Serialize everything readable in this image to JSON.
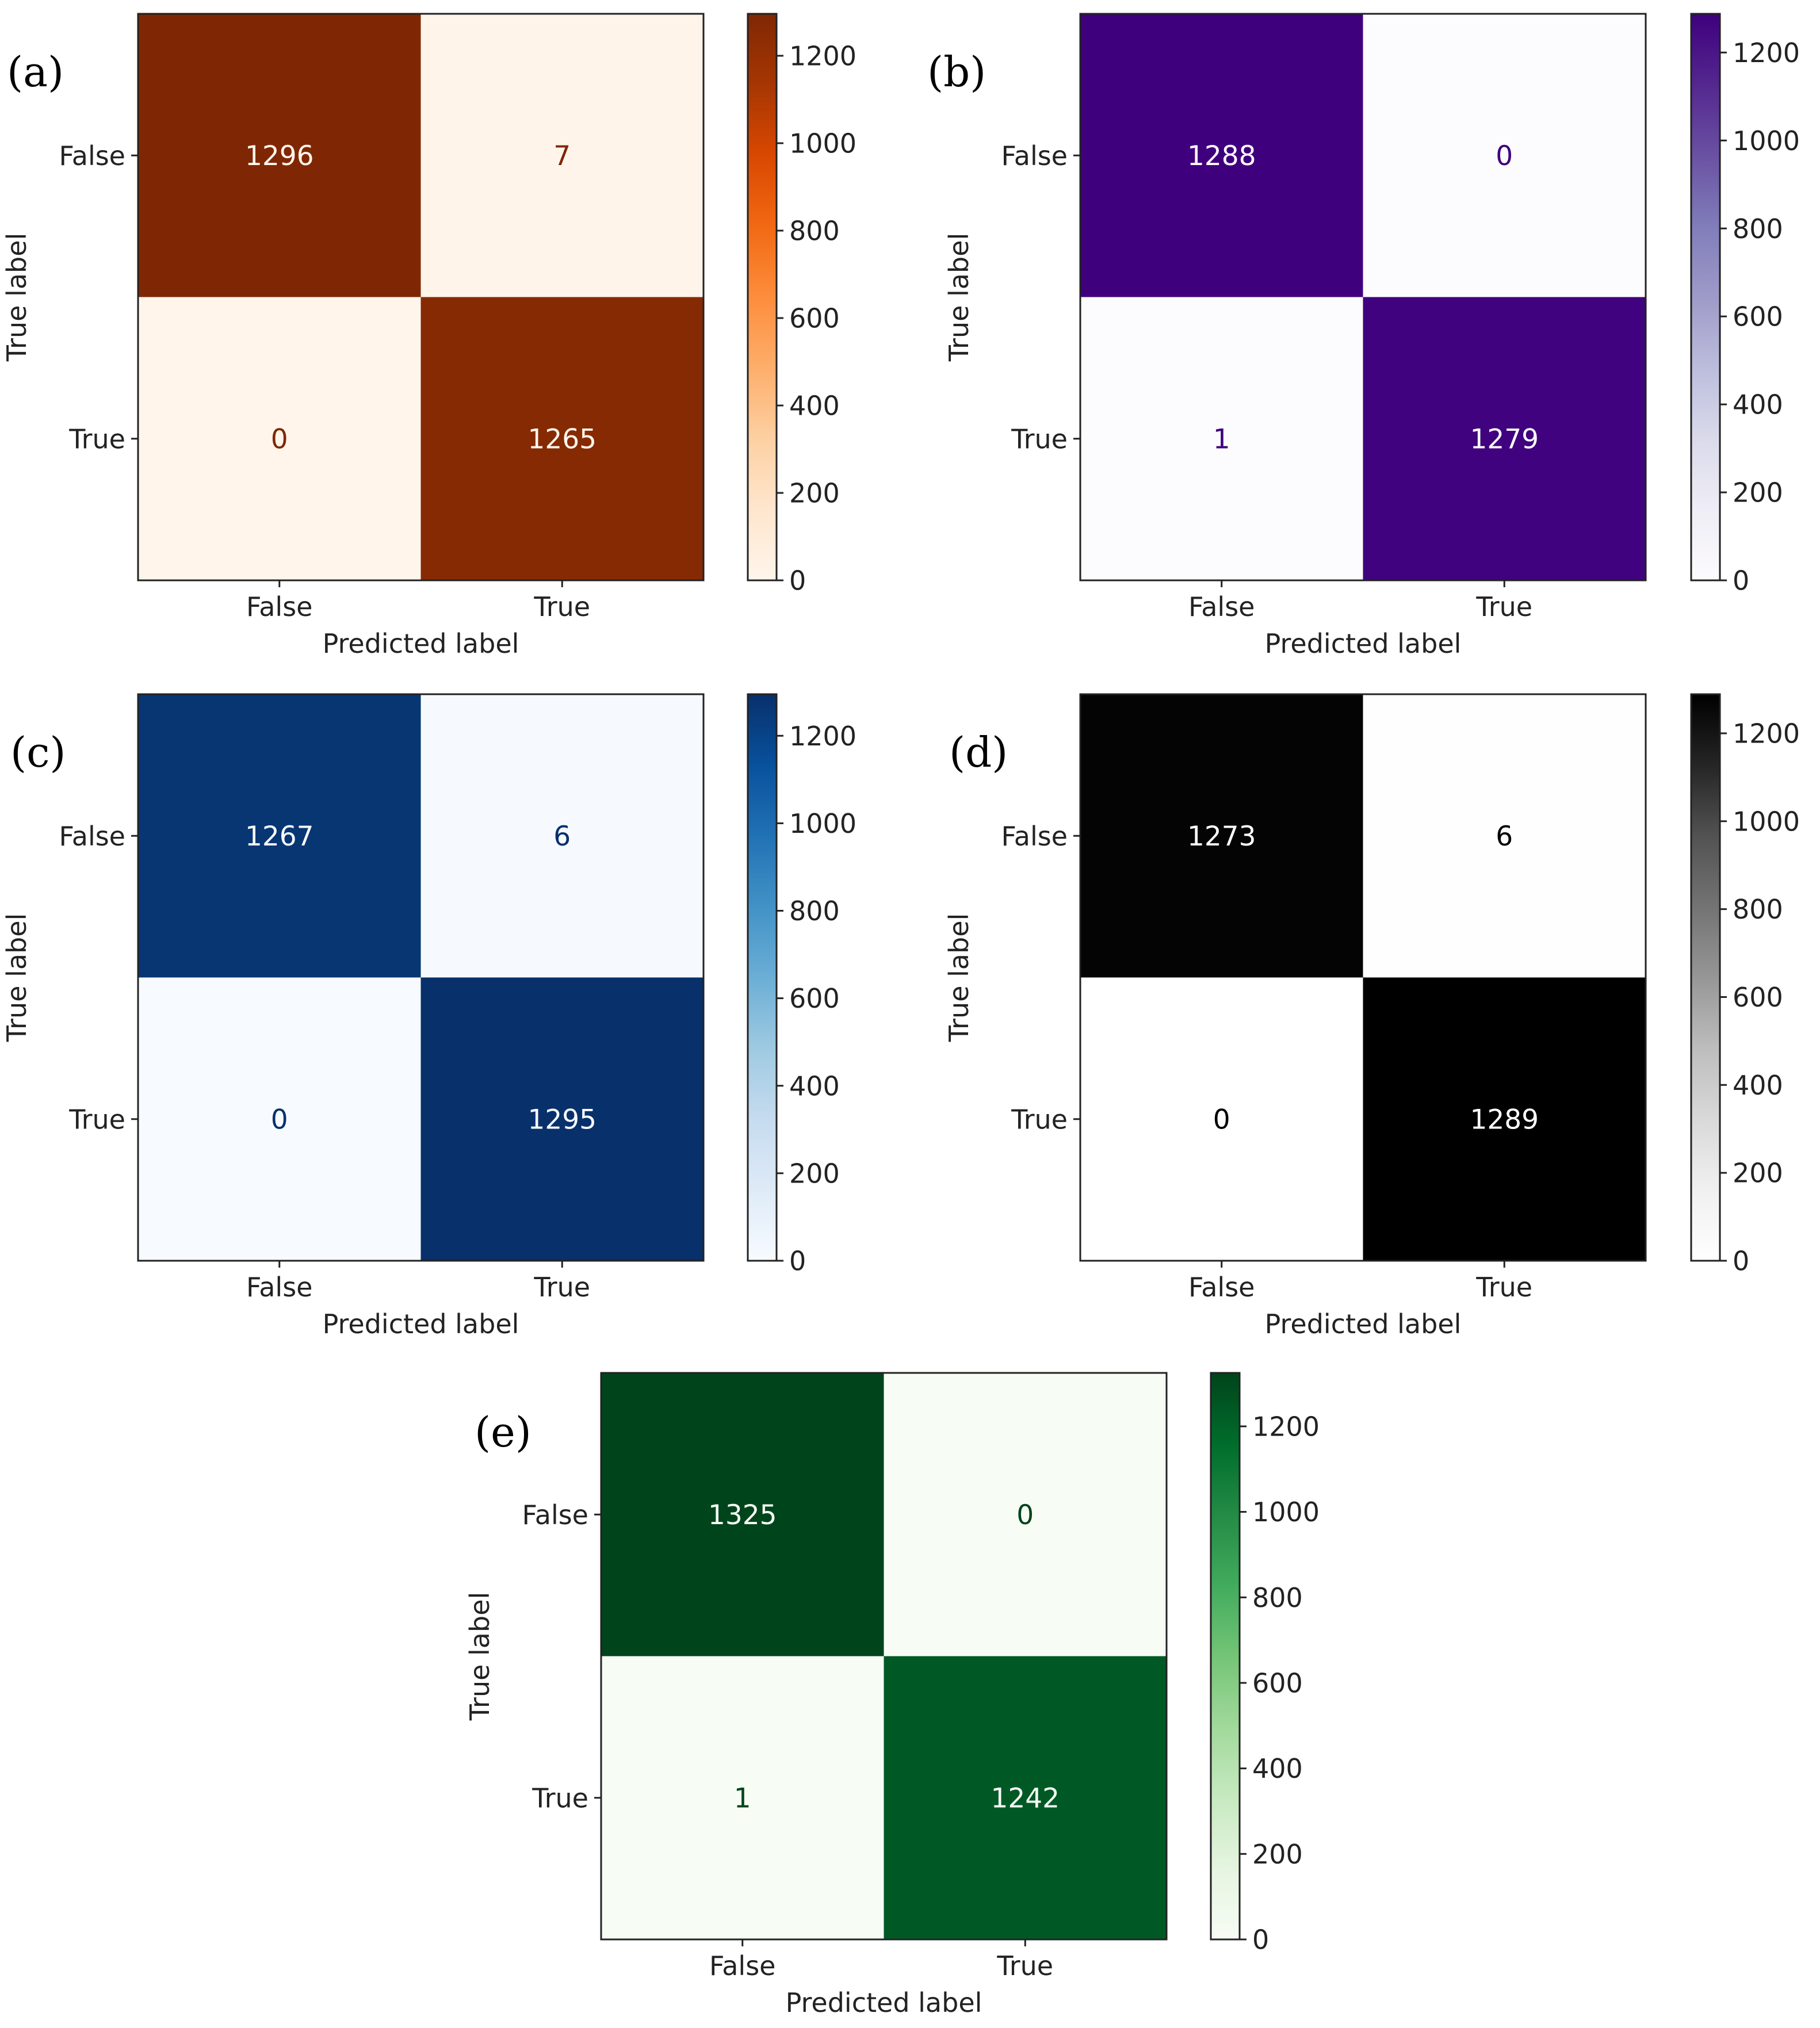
{
  "figure": {
    "panels": [
      {
        "label": "(a)",
        "colormap": "Oranges",
        "low_color": "#fff5eb",
        "mid_colors": [
          "#fee6ce",
          "#fdd0a2",
          "#fdae6b",
          "#fd8d3c",
          "#f16913",
          "#d94801",
          "#a63603"
        ],
        "high_color": "#7f2704",
        "dark_text_color": "#7f2704",
        "light_text_color": "#fff5eb"
      },
      {
        "label": "(b)",
        "colormap": "Purples",
        "low_color": "#fcfbfd",
        "mid_colors": [
          "#efedf5",
          "#dadaeb",
          "#bcbddc",
          "#9e9ac8",
          "#807dba",
          "#6a51a3",
          "#54278f"
        ],
        "high_color": "#3f007d",
        "dark_text_color": "#3f007d",
        "light_text_color": "#fcfbfd"
      },
      {
        "label": "(c)",
        "colormap": "Blues",
        "low_color": "#f7fbff",
        "mid_colors": [
          "#deebf7",
          "#c6dbef",
          "#9ecae1",
          "#6baed6",
          "#4292c6",
          "#2171b5",
          "#08519c"
        ],
        "high_color": "#08306b",
        "dark_text_color": "#08306b",
        "light_text_color": "#f7fbff"
      },
      {
        "label": "(d)",
        "colormap": "Greys",
        "low_color": "#ffffff",
        "mid_colors": [
          "#f0f0f0",
          "#d9d9d9",
          "#bdbdbd",
          "#969696",
          "#737373",
          "#525252",
          "#252525"
        ],
        "high_color": "#000000",
        "dark_text_color": "#000000",
        "light_text_color": "#ffffff"
      },
      {
        "label": "(e)",
        "colormap": "Greens",
        "low_color": "#f7fcf5",
        "mid_colors": [
          "#e5f5e0",
          "#c7e9c0",
          "#a1d99b",
          "#74c476",
          "#41ab5d",
          "#238b45",
          "#006d2c"
        ],
        "high_color": "#00441b",
        "dark_text_color": "#00441b",
        "light_text_color": "#f7fcf5"
      }
    ]
  },
  "chart_data": [
    {
      "type": "heatmap",
      "title": "",
      "xlabel": "Predicted label",
      "ylabel": "True label",
      "x_categories": [
        "False",
        "True"
      ],
      "y_categories": [
        "False",
        "True"
      ],
      "values": [
        [
          1296,
          7
        ],
        [
          0,
          1265
        ]
      ],
      "colorbar_ticks": [
        0,
        200,
        400,
        600,
        800,
        1000,
        1200
      ],
      "colorbar_range": [
        0,
        1296
      ]
    },
    {
      "type": "heatmap",
      "title": "",
      "xlabel": "Predicted label",
      "ylabel": "True label",
      "x_categories": [
        "False",
        "True"
      ],
      "y_categories": [
        "False",
        "True"
      ],
      "values": [
        [
          1288,
          0
        ],
        [
          1,
          1279
        ]
      ],
      "colorbar_ticks": [
        0,
        200,
        400,
        600,
        800,
        1000,
        1200
      ],
      "colorbar_range": [
        0,
        1288
      ]
    },
    {
      "type": "heatmap",
      "title": "",
      "xlabel": "Predicted label",
      "ylabel": "True label",
      "x_categories": [
        "False",
        "True"
      ],
      "y_categories": [
        "False",
        "True"
      ],
      "values": [
        [
          1267,
          6
        ],
        [
          0,
          1295
        ]
      ],
      "colorbar_ticks": [
        0,
        200,
        400,
        600,
        800,
        1000,
        1200
      ],
      "colorbar_range": [
        0,
        1295
      ]
    },
    {
      "type": "heatmap",
      "title": "",
      "xlabel": "Predicted label",
      "ylabel": "True label",
      "x_categories": [
        "False",
        "True"
      ],
      "y_categories": [
        "False",
        "True"
      ],
      "values": [
        [
          1273,
          6
        ],
        [
          0,
          1289
        ]
      ],
      "colorbar_ticks": [
        0,
        200,
        400,
        600,
        800,
        1000,
        1200
      ],
      "colorbar_range": [
        0,
        1289
      ]
    },
    {
      "type": "heatmap",
      "title": "",
      "xlabel": "Predicted label",
      "ylabel": "True label",
      "x_categories": [
        "False",
        "True"
      ],
      "y_categories": [
        "False",
        "True"
      ],
      "values": [
        [
          1325,
          0
        ],
        [
          1,
          1242
        ]
      ],
      "colorbar_ticks": [
        0,
        200,
        400,
        600,
        800,
        1000,
        1200
      ],
      "colorbar_range": [
        0,
        1325
      ]
    }
  ]
}
